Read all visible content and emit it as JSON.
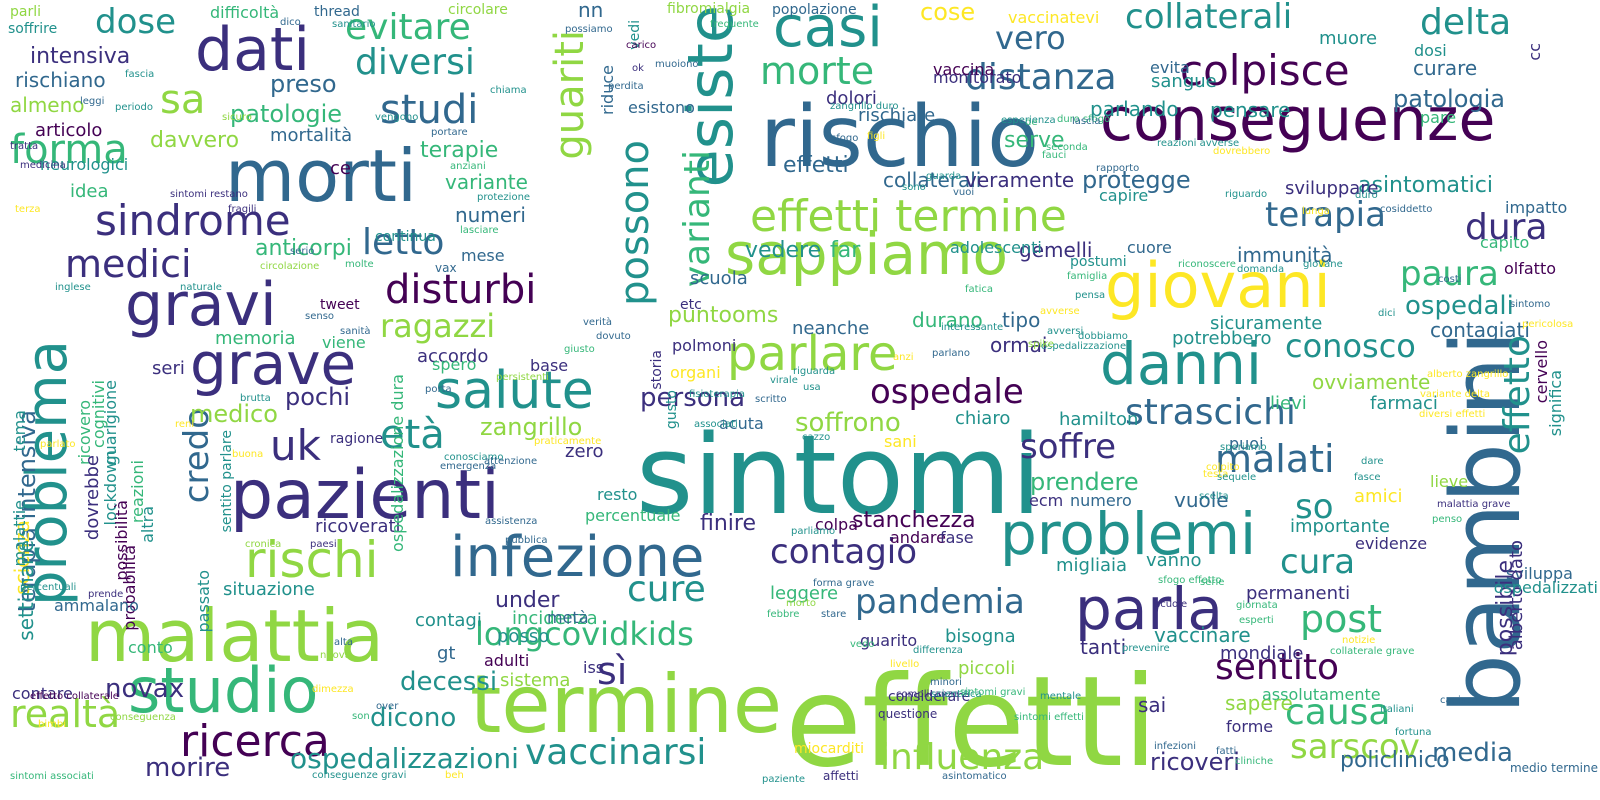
{
  "palette": {
    "purple": "#440154",
    "indigo": "#3b2f7d",
    "blue": "#31688e",
    "teal": "#21918c",
    "green": "#35b779",
    "lime": "#90d743",
    "yellow": "#fde725"
  },
  "words": [
    {
      "t": "effetti"
    },
    {
      "t": "sintomi"
    },
    {
      "t": "bambini"
    },
    {
      "t": "rischio"
    },
    {
      "t": "termine"
    },
    {
      "t": "morti"
    },
    {
      "t": "pazienti"
    },
    {
      "t": "malattia"
    },
    {
      "t": "giovani"
    },
    {
      "t": "esiste"
    },
    {
      "t": "conseguenze"
    },
    {
      "t": "problemi"
    },
    {
      "t": "infezione"
    },
    {
      "t": "problema"
    },
    {
      "t": "sappiamo"
    },
    {
      "t": "danni"
    },
    {
      "t": "parla"
    },
    {
      "t": "gravi"
    },
    {
      "t": "grave"
    },
    {
      "t": "studio"
    },
    {
      "t": "dati"
    },
    {
      "t": "casi"
    },
    {
      "t": "salute"
    },
    {
      "t": "parlare"
    },
    {
      "t": "effetti termine"
    },
    {
      "t": "colpisce"
    },
    {
      "t": "sindrome"
    },
    {
      "t": "rischi"
    },
    {
      "t": "ricerca"
    },
    {
      "t": "possono"
    },
    {
      "t": "varianti"
    },
    {
      "t": "guariti"
    },
    {
      "t": "vaccinarsi"
    },
    {
      "t": "influenza"
    },
    {
      "t": "longcovidkids"
    },
    {
      "t": "cure"
    },
    {
      "t": "disturbi"
    },
    {
      "t": "ospedale"
    },
    {
      "t": "strascichi"
    },
    {
      "t": "malati"
    },
    {
      "t": "soffre"
    },
    {
      "t": "pandemia"
    },
    {
      "t": "contagio"
    },
    {
      "t": "morte"
    },
    {
      "t": "distanza"
    },
    {
      "t": "vero"
    },
    {
      "t": "collaterali"
    },
    {
      "t": "delta"
    },
    {
      "t": "terapia"
    },
    {
      "t": "dura"
    },
    {
      "t": "effetto"
    },
    {
      "t": "conosco"
    },
    {
      "t": "uk"
    },
    {
      "t": "età"
    },
    {
      "t": "credo"
    },
    {
      "t": "letto"
    },
    {
      "t": "studi"
    },
    {
      "t": "medici"
    },
    {
      "t": "forma"
    },
    {
      "t": "dose"
    },
    {
      "t": "sa"
    },
    {
      "t": "diversi"
    },
    {
      "t": "evitare"
    },
    {
      "t": "ragazzi"
    },
    {
      "t": "post"
    },
    {
      "t": "cura"
    },
    {
      "t": "causa"
    },
    {
      "t": "sarscov"
    },
    {
      "t": "sentito"
    },
    {
      "t": "realtà"
    },
    {
      "t": "paura"
    },
    {
      "t": "ospedali"
    },
    {
      "t": "patologia"
    },
    {
      "t": "asintomatici"
    },
    {
      "t": "possibile"
    },
    {
      "t": "terapia intensiva"
    },
    {
      "t": "media"
    },
    {
      "t": "ricoveri"
    },
    {
      "t": "policlinico"
    },
    {
      "t": "ospedalizzazioni"
    },
    {
      "t": "morire"
    },
    {
      "t": "novax"
    },
    {
      "t": "decessi"
    },
    {
      "t": "dicono"
    },
    {
      "t": "sì"
    },
    {
      "t": "so"
    },
    {
      "t": "zangrillo"
    },
    {
      "t": "soffrono"
    },
    {
      "t": "persona"
    },
    {
      "t": "pochi"
    },
    {
      "t": "medico"
    },
    {
      "t": "memoria"
    },
    {
      "t": "anticorpi"
    },
    {
      "t": "terapie"
    },
    {
      "t": "variante"
    },
    {
      "t": "numeri"
    },
    {
      "t": "davvero"
    },
    {
      "t": "patologie"
    },
    {
      "t": "preso"
    },
    {
      "t": "intensiva"
    },
    {
      "t": "almeno"
    },
    {
      "t": "rischiano"
    },
    {
      "t": "articolo"
    },
    {
      "t": "neurologici"
    },
    {
      "t": "idea"
    },
    {
      "t": "mortalità"
    },
    {
      "t": "ce"
    },
    {
      "t": "puntooms"
    },
    {
      "t": "vedere"
    },
    {
      "t": "far"
    },
    {
      "t": "scuola"
    },
    {
      "t": "under"
    },
    {
      "t": "contagi"
    },
    {
      "t": "situazione"
    },
    {
      "t": "gt"
    },
    {
      "t": "adulti"
    },
    {
      "t": "sistema"
    },
    {
      "t": "incidenza"
    },
    {
      "t": "finire"
    },
    {
      "t": "stanchezza"
    },
    {
      "t": "andare"
    },
    {
      "t": "fase"
    },
    {
      "t": "ricoverati"
    },
    {
      "t": "percentuale"
    },
    {
      "t": "resto"
    },
    {
      "t": "zero"
    },
    {
      "t": "leggere"
    },
    {
      "t": "bisogna"
    },
    {
      "t": "guarito"
    },
    {
      "t": "piccoli"
    },
    {
      "t": "tanti"
    },
    {
      "t": "migliaia"
    },
    {
      "t": "vaccinare"
    },
    {
      "t": "permanenti"
    },
    {
      "t": "mondiale"
    },
    {
      "t": "sai"
    },
    {
      "t": "sapere"
    },
    {
      "t": "forme"
    },
    {
      "t": "assolutamente"
    },
    {
      "t": "prendere"
    },
    {
      "t": "vuole"
    },
    {
      "t": "importante"
    },
    {
      "t": "evidenze"
    },
    {
      "t": "vanno"
    },
    {
      "t": "amici"
    },
    {
      "t": "lieve"
    },
    {
      "t": "ovviamente"
    },
    {
      "t": "potrebbero"
    },
    {
      "t": "sicuramente"
    },
    {
      "t": "lievi"
    },
    {
      "t": "farmaci"
    },
    {
      "t": "contagiati"
    },
    {
      "t": "olfatto"
    },
    {
      "t": "capito"
    },
    {
      "t": "immunità"
    },
    {
      "t": "cuore"
    },
    {
      "t": "gemelli"
    },
    {
      "t": "adolescenti"
    },
    {
      "t": "postumi"
    },
    {
      "t": "tipo"
    },
    {
      "t": "ormai"
    },
    {
      "t": "durano"
    },
    {
      "t": "neanche"
    },
    {
      "t": "chiaro"
    },
    {
      "t": "hamilton"
    },
    {
      "t": "puoi"
    },
    {
      "t": "ecm"
    },
    {
      "t": "numero"
    },
    {
      "t": "monitorato"
    },
    {
      "t": "dolori"
    },
    {
      "t": "rischiare"
    },
    {
      "t": "effetti"
    },
    {
      "t": "collaterali"
    },
    {
      "t": "veramente"
    },
    {
      "t": "protegge"
    },
    {
      "t": "capire"
    },
    {
      "t": "sviluppare"
    },
    {
      "t": "curare"
    },
    {
      "t": "parlando"
    },
    {
      "t": "pensare"
    },
    {
      "t": "serve"
    },
    {
      "t": "sangue"
    },
    {
      "t": "evita"
    },
    {
      "t": "muore"
    },
    {
      "t": "dosi"
    },
    {
      "t": "pare"
    },
    {
      "t": "impatto"
    },
    {
      "t": "cose"
    },
    {
      "t": "vaccinatevi"
    },
    {
      "t": "vaccina"
    },
    {
      "t": "cc"
    },
    {
      "t": "base"
    },
    {
      "t": "accordo"
    },
    {
      "t": "spero"
    },
    {
      "t": "etc"
    },
    {
      "t": "polmoni"
    },
    {
      "t": "organi"
    },
    {
      "t": "acuta"
    },
    {
      "t": "tweet"
    },
    {
      "t": "viene"
    },
    {
      "t": "ragione"
    },
    {
      "t": "seri"
    },
    {
      "t": "continua"
    },
    {
      "t": "vax"
    },
    {
      "t": "mese"
    },
    {
      "t": "nn"
    },
    {
      "t": "vedi"
    },
    {
      "t": "riduce"
    },
    {
      "t": "esistono"
    },
    {
      "t": "soffrire"
    },
    {
      "t": "difficoltà"
    },
    {
      "t": "thread"
    },
    {
      "t": "parli"
    },
    {
      "t": "circolare"
    },
    {
      "t": "fibromialgia"
    },
    {
      "t": "popolazione"
    },
    {
      "t": "guarigione"
    },
    {
      "t": "cognitivi"
    },
    {
      "t": "lockdown"
    },
    {
      "t": "possibilità"
    },
    {
      "t": "probabilità"
    },
    {
      "t": "altra"
    },
    {
      "t": "reazioni"
    },
    {
      "t": "scienza"
    },
    {
      "t": "settimane"
    },
    {
      "t": "malattie"
    },
    {
      "t": "ricovero"
    },
    {
      "t": "dovrebbe"
    },
    {
      "t": "tema"
    },
    {
      "t": "contare"
    },
    {
      "t": "ammalano"
    },
    {
      "t": "conto"
    },
    {
      "t": "passato"
    },
    {
      "t": "sviluppa"
    },
    {
      "t": "alberto dato"
    },
    {
      "t": "ospedalizzati"
    },
    {
      "t": "medio termine"
    },
    {
      "t": "ospedalizzazione dura"
    },
    {
      "t": "sentito parlare"
    },
    {
      "t": "cervello"
    },
    {
      "t": "significa"
    },
    {
      "t": "posso"
    },
    {
      "t": "metà"
    },
    {
      "t": "iss"
    },
    {
      "t": "colpa"
    },
    {
      "t": "considerare"
    },
    {
      "t": "questione"
    },
    {
      "t": "sani"
    },
    {
      "t": "storia"
    },
    {
      "t": "gusto"
    },
    {
      "t": "muoiono"
    },
    {
      "t": "chiama"
    },
    {
      "t": "vengono"
    },
    {
      "t": "periodo"
    },
    {
      "t": "fascia"
    },
    {
      "t": "leggi"
    },
    {
      "t": "dico"
    },
    {
      "t": "sanitario"
    },
    {
      "t": "sicuro"
    },
    {
      "t": "tratta"
    },
    {
      "t": "medicina"
    },
    {
      "t": "sintomi restano"
    },
    {
      "t": "terza"
    },
    {
      "t": "fragili"
    },
    {
      "t": "serio"
    },
    {
      "t": "molte"
    },
    {
      "t": "circolazione"
    },
    {
      "t": "inglese"
    },
    {
      "t": "naturale"
    },
    {
      "t": "senso"
    },
    {
      "t": "sanità"
    },
    {
      "t": "brutta"
    },
    {
      "t": "parlato"
    },
    {
      "t": "reni"
    },
    {
      "t": "buona"
    },
    {
      "t": "cronica"
    },
    {
      "t": "paesi"
    },
    {
      "t": "percentuali"
    },
    {
      "t": "prende"
    },
    {
      "t": "nuova"
    },
    {
      "t": "bimbi"
    },
    {
      "t": "conseguenza"
    },
    {
      "t": "effetto collaterale"
    },
    {
      "t": "sintomi associati"
    },
    {
      "t": "conseguenze gravi"
    },
    {
      "t": "beh"
    },
    {
      "t": "paziente"
    },
    {
      "t": "affetti"
    },
    {
      "t": "miocarditi"
    },
    {
      "t": "asintomatico"
    },
    {
      "t": "possiamo"
    },
    {
      "t": "frequente"
    },
    {
      "t": "carico"
    },
    {
      "t": "ok"
    },
    {
      "t": "perdita"
    },
    {
      "t": "portare"
    },
    {
      "t": "anziani"
    },
    {
      "t": "protezione"
    },
    {
      "t": "lasciare"
    },
    {
      "t": "verità"
    },
    {
      "t": "dovuto"
    },
    {
      "t": "giusto"
    },
    {
      "t": "persistenti"
    },
    {
      "t": "porta"
    },
    {
      "t": "praticamente"
    },
    {
      "t": "conosciamo"
    },
    {
      "t": "attenzione"
    },
    {
      "t": "emergenza"
    },
    {
      "t": "assistenza"
    },
    {
      "t": "pubblica"
    },
    {
      "t": "parliamo"
    },
    {
      "t": "forma grave"
    },
    {
      "t": "morto"
    },
    {
      "t": "febbre"
    },
    {
      "t": "stare"
    },
    {
      "t": "complicanze"
    },
    {
      "t": "scientifica"
    },
    {
      "t": "alta"
    },
    {
      "t": "over"
    },
    {
      "t": "son"
    },
    {
      "t": "dimezza"
    },
    {
      "t": "vedo"
    },
    {
      "t": "livello"
    },
    {
      "t": "differenza"
    },
    {
      "t": "minori"
    },
    {
      "t": "sintomi gravi"
    },
    {
      "t": "sintomi effetti"
    },
    {
      "t": "mentale"
    },
    {
      "t": "prevenire"
    },
    {
      "t": "scuole"
    },
    {
      "t": "sfogo effetto"
    },
    {
      "t": "serie"
    },
    {
      "t": "giornata"
    },
    {
      "t": "esperti"
    },
    {
      "t": "collaterale grave"
    },
    {
      "t": "notizie"
    },
    {
      "t": "cliniche"
    },
    {
      "t": "fatti"
    },
    {
      "t": "infezioni"
    },
    {
      "t": "italiani"
    },
    {
      "t": "fortuna"
    },
    {
      "t": "capisco"
    },
    {
      "t": "fasce"
    },
    {
      "t": "dare"
    },
    {
      "t": "speriamo"
    },
    {
      "t": "colpito"
    },
    {
      "t": "scelta"
    },
    {
      "t": "testa"
    },
    {
      "t": "sequele"
    },
    {
      "t": "domanda"
    },
    {
      "t": "giovane"
    },
    {
      "t": "riconoscere"
    },
    {
      "t": "famiglia"
    },
    {
      "t": "pensa"
    },
    {
      "t": "avverse"
    },
    {
      "t": "avversi"
    },
    {
      "t": "ospedalizzazione"
    },
    {
      "t": "dobbiamo"
    },
    {
      "t": "spike"
    },
    {
      "t": "interessante"
    },
    {
      "t": "parlano"
    },
    {
      "t": "anzi"
    },
    {
      "t": "fatica"
    },
    {
      "t": "riguarda"
    },
    {
      "t": "usa"
    },
    {
      "t": "virale"
    },
    {
      "t": "cazzo"
    },
    {
      "t": "scritto"
    },
    {
      "t": "associati"
    },
    {
      "t": "fisioterapia"
    },
    {
      "t": "dici"
    },
    {
      "t": "costi"
    },
    {
      "t": "sintomo"
    },
    {
      "t": "pericolosa"
    },
    {
      "t": "alberto zangrillo"
    },
    {
      "t": "variante delta"
    },
    {
      "t": "diversi effetti"
    },
    {
      "t": "malattia grave"
    },
    {
      "t": "penso"
    },
    {
      "t": "duro"
    },
    {
      "t": "lunga"
    },
    {
      "t": "cosiddetto"
    },
    {
      "t": "riguardo"
    },
    {
      "t": "rapporto"
    },
    {
      "t": "duro sfogo"
    },
    {
      "t": "seconda"
    },
    {
      "t": "fauci"
    },
    {
      "t": "de"
    },
    {
      "t": "guarda"
    },
    {
      "t": "vuoi"
    },
    {
      "t": "sono"
    },
    {
      "t": "sfogo"
    },
    {
      "t": "zangrillo duro"
    },
    {
      "t": "figli"
    },
    {
      "t": "esperienza"
    },
    {
      "t": "lascia"
    },
    {
      "t": "reazioni avverse"
    },
    {
      "t": "dovrebbero"
    }
  ]
}
